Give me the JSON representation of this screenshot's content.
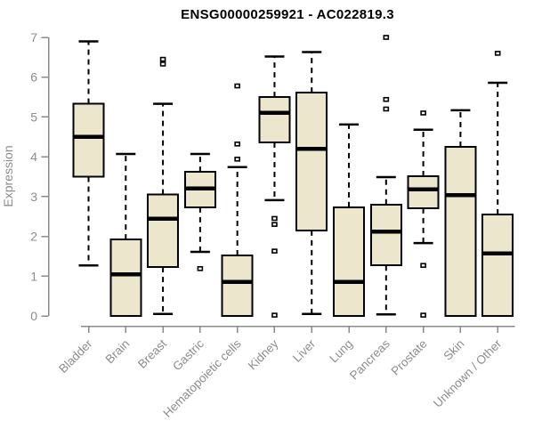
{
  "chart_data": {
    "type": "boxplot",
    "title": "ENSG00000259921 - AC022819.3",
    "ylabel": "Expression",
    "xlabel": "",
    "ylim": [
      0,
      7
    ],
    "yticks": [
      0,
      1,
      2,
      3,
      4,
      5,
      6,
      7
    ],
    "grid": false,
    "legend": "none",
    "categories": [
      "Bladder",
      "Brain",
      "Breast",
      "Gastric",
      "Hematopoietic cells",
      "Kidney",
      "Liver",
      "Lung",
      "Pancreas",
      "Prostate",
      "Skin",
      "Unknown / Other"
    ],
    "series": [
      {
        "name": "Bladder",
        "low": 1.27,
        "q1": 3.5,
        "median": 4.5,
        "q3": 5.33,
        "high": 6.9,
        "outliers": []
      },
      {
        "name": "Brain",
        "low": 0.0,
        "q1": 0.0,
        "median": 1.05,
        "q3": 1.92,
        "high": 4.07,
        "outliers": []
      },
      {
        "name": "Breast",
        "low": 0.05,
        "q1": 1.23,
        "median": 2.44,
        "q3": 3.05,
        "high": 5.33,
        "outliers": [
          6.45,
          6.33
        ]
      },
      {
        "name": "Gastric",
        "low": 1.61,
        "q1": 2.73,
        "median": 3.2,
        "q3": 3.62,
        "high": 4.07,
        "outliers": [
          1.19
        ]
      },
      {
        "name": "Hematopoietic cells",
        "low": 0.0,
        "q1": 0.0,
        "median": 0.85,
        "q3": 1.52,
        "high": 3.74,
        "outliers": [
          5.78,
          4.32,
          3.94
        ]
      },
      {
        "name": "Kidney",
        "low": 2.91,
        "q1": 4.36,
        "median": 5.1,
        "q3": 5.5,
        "high": 6.52,
        "outliers": [
          2.45,
          2.3,
          1.63,
          0.02
        ]
      },
      {
        "name": "Liver",
        "low": 0.05,
        "q1": 2.15,
        "median": 4.2,
        "q3": 5.61,
        "high": 6.63,
        "outliers": []
      },
      {
        "name": "Lung",
        "low": 0.0,
        "q1": 0.0,
        "median": 0.85,
        "q3": 2.73,
        "high": 4.81,
        "outliers": []
      },
      {
        "name": "Pancreas",
        "low": 0.04,
        "q1": 1.27,
        "median": 2.12,
        "q3": 2.8,
        "high": 3.49,
        "outliers": [
          7.0,
          5.44,
          5.2
        ]
      },
      {
        "name": "Prostate",
        "low": 1.83,
        "q1": 2.71,
        "median": 3.18,
        "q3": 3.51,
        "high": 4.68,
        "outliers": [
          5.1,
          1.27,
          0.02
        ]
      },
      {
        "name": "Skin",
        "low": 0.0,
        "q1": 0.0,
        "median": 3.04,
        "q3": 4.25,
        "high": 5.17,
        "outliers": []
      },
      {
        "name": "Unknown / Other",
        "low": 0.0,
        "q1": 0.0,
        "median": 1.57,
        "q3": 2.55,
        "high": 5.86,
        "outliers": [
          6.6
        ]
      }
    ],
    "colors": {
      "box_fill": "#ECE7CC",
      "box_border": "#000000",
      "median": "#000000",
      "whisker": "#000000",
      "axis": "#8a8a8a",
      "tick_label": "#8c8c8c",
      "title": "#000000",
      "background": "#ffffff"
    }
  }
}
